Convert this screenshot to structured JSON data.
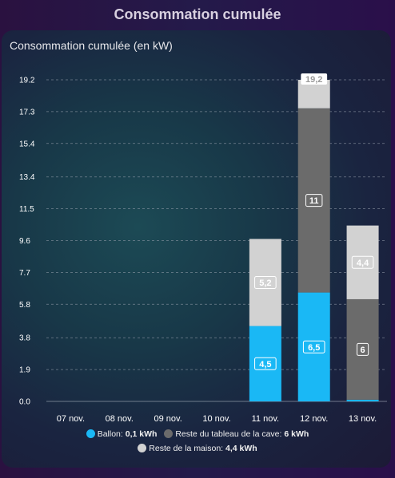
{
  "page": {
    "title": "Consommation cumulée"
  },
  "card": {
    "title": "Consommation cumulée (en kW)"
  },
  "legend": [
    {
      "label": "Ballon:",
      "value": "0,1 kWh",
      "color": "#1ab8f5"
    },
    {
      "label": "Reste du tableau de la cave:",
      "value": "6 kWh",
      "color": "#6b6b6b"
    },
    {
      "label": "Reste de la maison:",
      "value": "4,4 kWh",
      "color": "#d2d2d2"
    }
  ],
  "chart_data": {
    "type": "bar",
    "stacked": true,
    "title": "Consommation cumulée (en kW)",
    "categories": [
      "07 nov.",
      "08 nov.",
      "09 nov.",
      "10 nov.",
      "11 nov.",
      "12 nov.",
      "13 nov."
    ],
    "series": [
      {
        "name": "Ballon",
        "color": "#1ab8f5",
        "values": [
          0,
          0,
          0,
          0,
          4.5,
          6.5,
          0.1
        ],
        "labels": [
          "",
          "",
          "",
          "",
          "4,5",
          "6,5",
          ""
        ]
      },
      {
        "name": "Reste du tableau de la cave",
        "color": "#6b6b6b",
        "values": [
          0,
          0,
          0,
          0,
          0,
          11,
          6
        ],
        "labels": [
          "",
          "",
          "",
          "",
          "",
          "11",
          "6"
        ]
      },
      {
        "name": "Reste de la maison",
        "color": "#d2d2d2",
        "values": [
          0,
          0,
          0,
          0,
          5.2,
          1.7,
          4.4
        ],
        "labels": [
          "",
          "",
          "",
          "",
          "5,2",
          "",
          "4,4"
        ]
      }
    ],
    "totals": [
      "",
      "",
      "",
      "",
      "",
      "19,2",
      ""
    ],
    "yticks": [
      "0.0",
      "1.9",
      "3.8",
      "5.8",
      "7.7",
      "9.6",
      "11.5",
      "13.4",
      "15.4",
      "17.3",
      "19.2"
    ],
    "ylim": [
      0,
      19.2
    ],
    "grid": true,
    "legend_position": "bottom"
  }
}
